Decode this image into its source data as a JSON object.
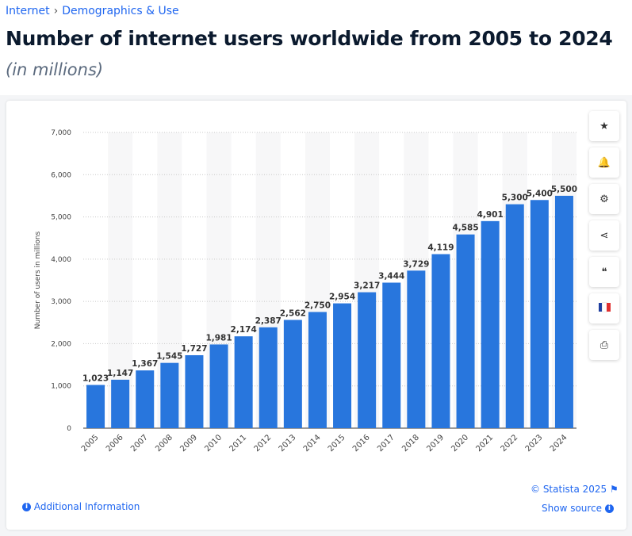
{
  "breadcrumb": [
    "Internet",
    "Demographics & Use"
  ],
  "title": "Number of internet users worldwide from 2005 to 2024",
  "subtitle": "(in millions)",
  "sidebar": [
    {
      "icon": "star-icon",
      "glyph": "★"
    },
    {
      "icon": "bell-icon",
      "glyph": "🔔"
    },
    {
      "icon": "gear-icon",
      "glyph": "⚙"
    },
    {
      "icon": "share-icon",
      "glyph": "⋖"
    },
    {
      "icon": "quote-icon",
      "glyph": "❝"
    },
    {
      "icon": "french-flag-icon",
      "glyph": ""
    },
    {
      "icon": "print-icon",
      "glyph": "⎙"
    }
  ],
  "footer": {
    "additional_info": "Additional Information",
    "copyright": "© Statista 2025",
    "show_source": "Show source"
  },
  "colors": {
    "bar": "#2876dd",
    "link": "#1f66f0"
  },
  "chart_data": {
    "type": "bar",
    "categories": [
      "2005",
      "2006",
      "2007",
      "2008",
      "2009",
      "2010",
      "2011",
      "2012",
      "2013",
      "2014",
      "2015",
      "2016",
      "2017",
      "2018",
      "2019",
      "2020",
      "2021",
      "2022",
      "2023",
      "2024"
    ],
    "values": [
      1023,
      1147,
      1367,
      1545,
      1727,
      1981,
      2174,
      2387,
      2562,
      2750,
      2954,
      3217,
      3444,
      3729,
      4119,
      4585,
      4901,
      5300,
      5400,
      5500
    ],
    "labels": [
      "1,023",
      "1,147",
      "1,367",
      "1,545",
      "1,727",
      "1,981",
      "2,174",
      "2,387",
      "2,562",
      "2,750",
      "2,954",
      "3,217",
      "3,444",
      "3,729",
      "4,119",
      "4,585",
      "4,901",
      "5,300",
      "5,400",
      "5,500"
    ],
    "ylabel": "Number of users in millions",
    "ylim": [
      0,
      7000
    ],
    "yticks": [
      0,
      1000,
      2000,
      3000,
      4000,
      5000,
      6000,
      7000
    ],
    "ytick_labels": [
      "0",
      "1,000",
      "2,000",
      "3,000",
      "4,000",
      "5,000",
      "6,000",
      "7,000"
    ],
    "grid": true
  }
}
